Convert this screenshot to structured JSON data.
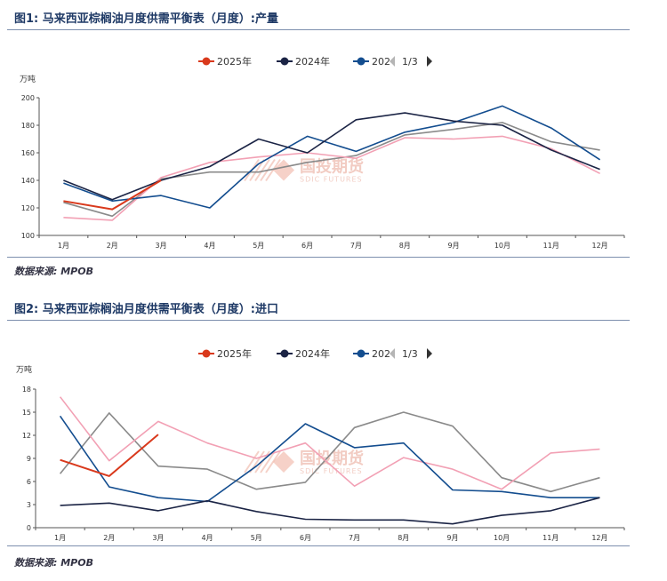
{
  "figures": [
    {
      "title": "图1: 马来西亚棕榈油月度供需平衡表（月度）:产量",
      "source": "数据来源: MPOB",
      "unit": "万吨",
      "legend": {
        "items": [
          {
            "label": "2025年",
            "color": "#d9391c"
          },
          {
            "label": "2024年",
            "color": "#1b2445"
          },
          {
            "label": "202",
            "color": "#134d8f"
          }
        ],
        "page": "1/3"
      },
      "watermark": {
        "text": "国投期货",
        "sub": "SDIC FUTURES"
      }
    },
    {
      "title": "图2: 马来西亚棕榈油月度供需平衡表（月度）:进口",
      "source": "数据来源: MPOB",
      "unit": "万吨",
      "legend": {
        "items": [
          {
            "label": "2025年",
            "color": "#d9391c"
          },
          {
            "label": "2024年",
            "color": "#1b2445"
          },
          {
            "label": "202",
            "color": "#134d8f"
          }
        ],
        "page": "1/3"
      },
      "watermark": {
        "text": "国投期货",
        "sub": "SDIC FUTURES"
      }
    }
  ],
  "chart_data": [
    {
      "type": "line",
      "categories": [
        "1月",
        "2月",
        "3月",
        "4月",
        "5月",
        "6月",
        "7月",
        "8月",
        "9月",
        "10月",
        "11月",
        "12月"
      ],
      "ylim": [
        100,
        200
      ],
      "yticks": [
        100,
        120,
        140,
        160,
        180,
        200
      ],
      "grid": false,
      "legend_position": "top-center",
      "series": [
        {
          "name": "2025年",
          "color": "#d9391c",
          "width": 2,
          "values": [
            125,
            119,
            140,
            null,
            null,
            null,
            null,
            null,
            null,
            null,
            null,
            null
          ]
        },
        {
          "name": "2024年",
          "color": "#1b2445",
          "width": 1.6,
          "values": [
            140,
            126,
            140,
            150,
            170,
            160,
            184,
            189,
            183,
            180,
            162,
            148
          ]
        },
        {
          "name": "202",
          "color": "#134d8f",
          "width": 1.6,
          "values": [
            138,
            125,
            129,
            120,
            152,
            172,
            161,
            175,
            182,
            194,
            178,
            155
          ]
        },
        {
          "color": "#f2a0b4",
          "width": 1.6,
          "values": [
            113,
            111,
            142,
            153,
            157,
            160,
            156,
            171,
            170,
            172,
            163,
            145
          ]
        },
        {
          "color": "#8a8a8a",
          "width": 1.6,
          "values": [
            124,
            114,
            141,
            146,
            146,
            153,
            158,
            173,
            177,
            182,
            168,
            162
          ]
        }
      ]
    },
    {
      "type": "line",
      "categories": [
        "1月",
        "2月",
        "3月",
        "4月",
        "5月",
        "6月",
        "7月",
        "8月",
        "9月",
        "10月",
        "11月",
        "12月"
      ],
      "ylim": [
        0,
        18
      ],
      "yticks": [
        0,
        3,
        6,
        9,
        12,
        15,
        18
      ],
      "grid": false,
      "legend_position": "top-center",
      "series": [
        {
          "name": "2025年",
          "color": "#d9391c",
          "width": 2,
          "values": [
            8.8,
            6.7,
            12.1,
            null,
            null,
            null,
            null,
            null,
            null,
            null,
            null,
            null
          ]
        },
        {
          "name": "2024年",
          "color": "#1b2445",
          "width": 1.6,
          "values": [
            2.9,
            3.2,
            2.2,
            3.5,
            2.1,
            1.1,
            1.0,
            1.0,
            0.5,
            1.6,
            2.2,
            3.9
          ]
        },
        {
          "name": "202",
          "color": "#134d8f",
          "width": 1.6,
          "values": [
            14.5,
            5.3,
            3.9,
            3.4,
            8.0,
            13.5,
            10.4,
            11.0,
            4.9,
            4.7,
            3.9,
            3.9
          ]
        },
        {
          "color": "#f2a0b4",
          "width": 1.6,
          "values": [
            17.0,
            8.7,
            13.8,
            11.0,
            9.0,
            11.0,
            5.4,
            9.1,
            7.6,
            5.0,
            9.7,
            10.2
          ]
        },
        {
          "color": "#8a8a8a",
          "width": 1.6,
          "values": [
            7.0,
            14.9,
            8.0,
            7.6,
            5.0,
            5.9,
            13.0,
            15.0,
            13.2,
            6.5,
            4.7,
            6.5
          ]
        }
      ]
    }
  ]
}
